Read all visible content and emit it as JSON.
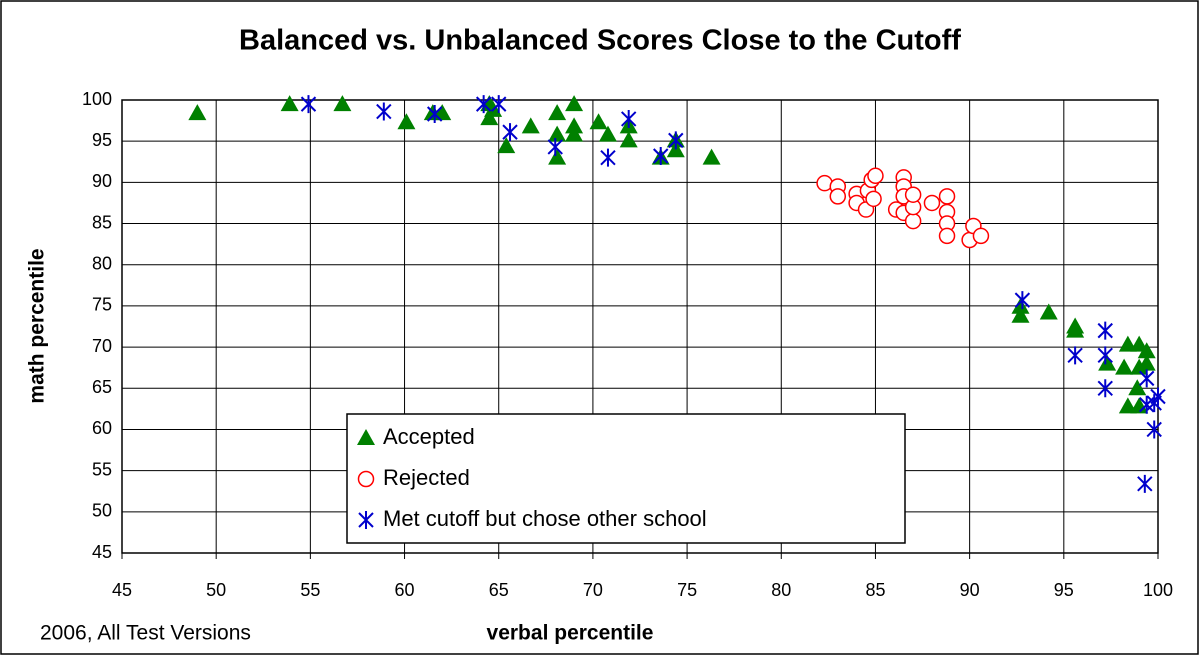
{
  "chart_data": {
    "type": "scatter",
    "title": "Balanced vs. Unbalanced Scores Close to the Cutoff",
    "xlabel": "verbal percentile",
    "ylabel": "math percentile",
    "annotation": "2006, All Test Versions",
    "xlim": [
      45,
      100
    ],
    "ylim": [
      45,
      100
    ],
    "xticks": [
      45,
      50,
      55,
      60,
      65,
      70,
      75,
      80,
      85,
      90,
      95,
      100
    ],
    "yticks": [
      45,
      50,
      55,
      60,
      65,
      70,
      75,
      80,
      85,
      90,
      95,
      100
    ],
    "grid": true,
    "legend": "lower center",
    "series": [
      {
        "name": "Accepted",
        "color": "#008000",
        "marker": "triangle",
        "x": [
          49.0,
          53.9,
          56.7,
          60.1,
          61.5,
          62.0,
          64.5,
          64.5,
          64.7,
          65.4,
          66.7,
          68.1,
          68.1,
          68.1,
          69.0,
          69.0,
          69.0,
          70.3,
          70.8,
          71.9,
          71.9,
          73.6,
          74.4,
          74.4,
          76.3,
          92.7,
          92.7,
          94.2,
          95.6,
          95.6,
          97.3,
          98.2,
          98.4,
          99.0,
          99.4,
          99.0,
          98.9,
          98.4,
          99.0,
          99.4
        ],
        "values": [
          98.4,
          99.5,
          99.5,
          97.3,
          98.4,
          98.4,
          99.5,
          97.8,
          98.8,
          94.4,
          96.8,
          98.4,
          95.8,
          93.0,
          99.5,
          96.8,
          95.8,
          97.3,
          95.8,
          96.8,
          95.1,
          93.0,
          93.9,
          95.1,
          93.0,
          74.9,
          73.8,
          74.2,
          72.5,
          72.0,
          68.0,
          67.5,
          70.3,
          70.3,
          69.5,
          67.5,
          65.0,
          62.8,
          62.8,
          68.0
        ]
      },
      {
        "name": "Rejected",
        "color": "#ff0000",
        "marker": "circle",
        "x": [
          82.3,
          83.0,
          83.0,
          84.0,
          84.0,
          84.6,
          84.8,
          85.0,
          84.5,
          84.9,
          86.1,
          86.5,
          86.5,
          86.5,
          86.5,
          87.0,
          87.0,
          87.0,
          88.0,
          88.8,
          88.8,
          88.8,
          88.8,
          90.0,
          90.2,
          90.6
        ],
        "values": [
          89.9,
          89.5,
          88.3,
          88.6,
          87.5,
          89.0,
          90.3,
          90.8,
          86.7,
          88.0,
          86.7,
          90.6,
          89.5,
          88.3,
          86.3,
          85.3,
          87.0,
          88.5,
          87.5,
          88.3,
          86.4,
          85.0,
          83.5,
          83.0,
          84.7,
          83.5
        ]
      },
      {
        "name": "Met cutoff but chose other school",
        "color": "#0000cc",
        "marker": "star",
        "x": [
          54.9,
          58.9,
          61.6,
          64.2,
          65.0,
          65.6,
          68.0,
          70.8,
          71.9,
          73.6,
          74.4,
          92.8,
          95.6,
          97.2,
          97.2,
          97.2,
          99.4,
          99.4,
          99.8,
          99.8,
          99.3,
          100.0
        ],
        "values": [
          99.5,
          98.6,
          98.3,
          99.5,
          99.5,
          96.1,
          94.3,
          93.0,
          97.7,
          93.2,
          95.1,
          75.7,
          69.0,
          72.0,
          69.0,
          65.0,
          66.2,
          63.0,
          63.2,
          60.0,
          53.4,
          64.0
        ]
      }
    ]
  }
}
